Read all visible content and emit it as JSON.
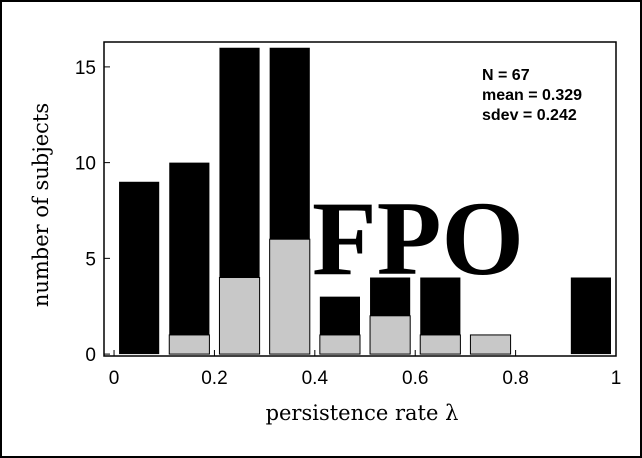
{
  "chart_data": {
    "type": "bar",
    "x": [
      0.05,
      0.15,
      0.25,
      0.35,
      0.45,
      0.55,
      0.65,
      0.75,
      0.85,
      0.95
    ],
    "series": [
      {
        "values": [
          9,
          10,
          16,
          16,
          3,
          4,
          4,
          1,
          0,
          4
        ],
        "color": "#000000"
      },
      {
        "values": [
          0,
          1,
          4,
          6,
          1,
          2,
          1,
          1,
          0,
          0
        ],
        "color": "#c8c8c8"
      }
    ],
    "xlabel": "persistence rate λ",
    "ylabel": "number of subjects",
    "xlim": [
      -0.02,
      1.0
    ],
    "ylim": [
      -0.1,
      16.3
    ],
    "xticks": [
      0,
      0.2,
      0.4,
      0.6,
      0.8,
      1
    ],
    "xtick_labels": [
      "0",
      "0.2",
      "0.4",
      "0.6",
      "0.8",
      "1"
    ],
    "yticks": [
      0,
      5,
      10,
      15
    ],
    "ytick_labels": [
      "0",
      "5",
      "10",
      "15"
    ],
    "grid": false,
    "annotations": [
      "N = 67",
      "mean = 0.329",
      "sdev = 0.242"
    ],
    "watermark": "FPO"
  }
}
